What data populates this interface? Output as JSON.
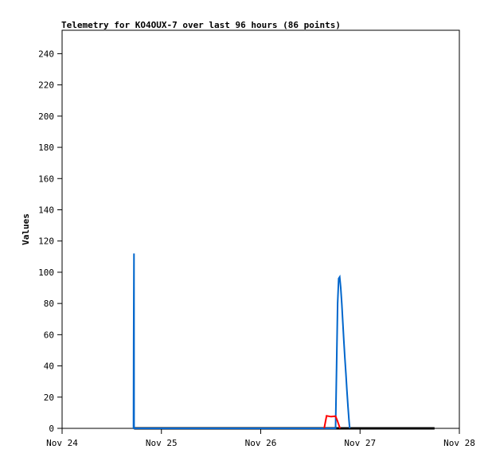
{
  "chart_data": {
    "type": "line",
    "title": "Telemetry for KO4OUX-7 over last 96 hours (86 points)",
    "xlabel": "",
    "ylabel": "Values",
    "x_ticks": [
      "Nov 24",
      "Nov 25",
      "Nov 26",
      "Nov 27",
      "Nov 28"
    ],
    "x_tick_dates": [
      "11-24 00:00",
      "11-25 00:00",
      "11-26 00:00",
      "11-27 00:00",
      "11-28 00:00"
    ],
    "xlim": [
      "11-24 00:00",
      "11-28 00:00"
    ],
    "y_ticks": [
      0,
      20,
      40,
      60,
      80,
      100,
      120,
      140,
      160,
      180,
      200,
      220,
      240
    ],
    "ylim": [
      0,
      255
    ],
    "grid": false,
    "series": [
      {
        "color": "#000000",
        "x": [
          "11-24 17:24",
          "11-27 18:00"
        ],
        "y": [
          0,
          0
        ]
      },
      {
        "color": "#0066cc",
        "x": [
          "11-24 17:15",
          "11-24 17:18",
          "11-24 17:22",
          "11-24 17:24",
          "11-26 18:05",
          "11-26 18:20",
          "11-26 18:35",
          "11-26 18:50",
          "11-26 19:05",
          "11-26 19:20",
          "11-26 19:35",
          "11-26 19:50",
          "11-26 20:05",
          "11-26 20:20",
          "11-26 20:35",
          "11-26 20:50",
          "11-26 21:05",
          "11-26 21:20",
          "11-26 21:30"
        ],
        "y": [
          0,
          56,
          112,
          0,
          0,
          40,
          80,
          96,
          97,
          90,
          80,
          68,
          56,
          45,
          35,
          24,
          14,
          5,
          0
        ]
      },
      {
        "color": "#ff0000",
        "x": [
          "11-26 15:20",
          "11-26 15:55",
          "11-26 17:00",
          "11-26 18:05",
          "11-26 18:30",
          "11-26 19:10"
        ],
        "y": [
          0,
          8,
          7.5,
          7.8,
          5,
          0
        ]
      }
    ]
  }
}
